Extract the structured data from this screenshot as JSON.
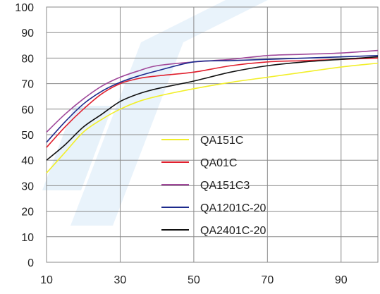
{
  "chart_data": {
    "type": "line",
    "title": "",
    "xlabel": "",
    "ylabel": "",
    "xlim": [
      10,
      100
    ],
    "ylim": [
      0,
      100
    ],
    "x_ticks": [
      10,
      30,
      50,
      70,
      90
    ],
    "y_ticks": [
      0,
      10,
      20,
      30,
      40,
      50,
      60,
      70,
      80,
      90,
      100
    ],
    "x_tick_labels": [
      "10",
      "30",
      "50",
      "70",
      "90"
    ],
    "y_tick_labels": [
      "0",
      "10",
      "20",
      "30",
      "40",
      "50",
      "60",
      "70",
      "80",
      "90",
      "100"
    ],
    "grid": true,
    "legend_position": "center-right",
    "series": [
      {
        "name": "QA151C",
        "color": "#f2ef2a",
        "points": [
          [
            10,
            35
          ],
          [
            15,
            43
          ],
          [
            20,
            51
          ],
          [
            25,
            56
          ],
          [
            30,
            60
          ],
          [
            35,
            63
          ],
          [
            40,
            65
          ],
          [
            50,
            68
          ],
          [
            60,
            70.5
          ],
          [
            70,
            72.5
          ],
          [
            80,
            74.5
          ],
          [
            90,
            76.5
          ],
          [
            100,
            78
          ]
        ]
      },
      {
        "name": "QA01C",
        "color": "#e0202e",
        "points": [
          [
            10,
            45
          ],
          [
            15,
            53
          ],
          [
            20,
            60
          ],
          [
            25,
            66
          ],
          [
            30,
            70
          ],
          [
            35,
            72
          ],
          [
            40,
            73
          ],
          [
            50,
            74.5
          ],
          [
            60,
            77
          ],
          [
            70,
            78.5
          ],
          [
            80,
            79
          ],
          [
            90,
            79.5
          ],
          [
            100,
            80
          ]
        ]
      },
      {
        "name": "QA151C3",
        "color": "#a0489a",
        "points": [
          [
            10,
            51
          ],
          [
            15,
            58
          ],
          [
            20,
            64
          ],
          [
            25,
            69
          ],
          [
            30,
            72.5
          ],
          [
            35,
            75
          ],
          [
            40,
            77
          ],
          [
            50,
            78.5
          ],
          [
            60,
            79.5
          ],
          [
            70,
            81
          ],
          [
            80,
            81.5
          ],
          [
            90,
            82
          ],
          [
            100,
            83
          ]
        ]
      },
      {
        "name": "QA1201C-20",
        "color": "#1c2a8c",
        "points": [
          [
            10,
            47
          ],
          [
            15,
            55
          ],
          [
            20,
            62
          ],
          [
            25,
            67
          ],
          [
            30,
            70.5
          ],
          [
            35,
            73
          ],
          [
            40,
            75
          ],
          [
            50,
            78.5
          ],
          [
            60,
            79
          ],
          [
            70,
            79.5
          ],
          [
            80,
            80
          ],
          [
            90,
            80.5
          ],
          [
            100,
            81
          ]
        ]
      },
      {
        "name": "QA2401C-20",
        "color": "#111111",
        "points": [
          [
            10,
            40
          ],
          [
            15,
            46
          ],
          [
            20,
            53
          ],
          [
            25,
            58
          ],
          [
            30,
            63
          ],
          [
            35,
            66
          ],
          [
            40,
            68
          ],
          [
            50,
            71
          ],
          [
            60,
            74.5
          ],
          [
            70,
            77
          ],
          [
            80,
            78.5
          ],
          [
            90,
            79.5
          ],
          [
            100,
            80.5
          ]
        ]
      }
    ]
  }
}
